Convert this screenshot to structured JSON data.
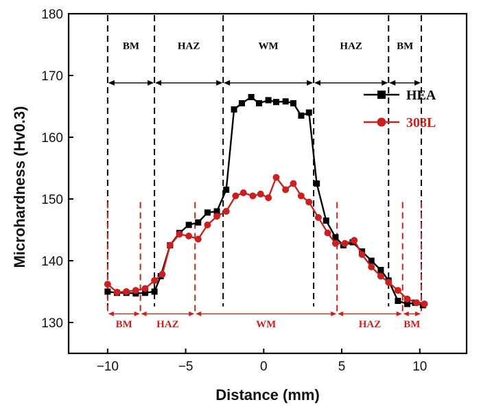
{
  "chart_data": {
    "type": "line",
    "xlabel": "Distance (mm)",
    "ylabel": "Microhardness (Hv0.3)",
    "xlim": [
      -12.5,
      13
    ],
    "ylim": [
      125,
      180
    ],
    "xticks": [
      -10,
      -5,
      0,
      5,
      10
    ],
    "xtick_labels": [
      "−10",
      "−5",
      "0",
      "5",
      "10"
    ],
    "yticks": [
      130,
      140,
      150,
      160,
      170,
      180
    ],
    "ytick_labels": [
      "130",
      "140",
      "150",
      "160",
      "170",
      "180"
    ],
    "colors": {
      "hea": "#000000",
      "l308": "#cc1f1f"
    },
    "series": [
      {
        "name": "HEA",
        "marker": "square",
        "x": [
          -10,
          -9.4,
          -8.8,
          -8.2,
          -7.6,
          -7.0,
          -6.6,
          -6.0,
          -5.4,
          -4.8,
          -4.2,
          -3.6,
          -3.0,
          -2.4,
          -1.9,
          -1.4,
          -0.8,
          -0.3,
          0.3,
          0.8,
          1.4,
          1.9,
          2.4,
          2.9,
          3.4,
          4.0,
          4.6,
          5.1,
          5.7,
          6.3,
          6.9,
          7.5,
          8.0,
          8.6,
          9.2,
          9.7,
          10.2
        ],
        "y": [
          135.0,
          134.8,
          134.8,
          134.7,
          134.8,
          135.0,
          137.5,
          142.5,
          144.5,
          145.8,
          146.2,
          147.8,
          148.0,
          151.5,
          164.5,
          165.5,
          166.5,
          165.5,
          166.0,
          165.7,
          165.8,
          165.5,
          163.5,
          164.0,
          152.5,
          146.5,
          143.8,
          142.5,
          143.0,
          141.5,
          140.0,
          138.5,
          136.8,
          133.5,
          133.0,
          133.2,
          132.8
        ]
      },
      {
        "name": "308L",
        "marker": "circle",
        "x": [
          -10,
          -9.4,
          -8.8,
          -8.2,
          -7.6,
          -7.0,
          -6.5,
          -6.0,
          -5.4,
          -4.8,
          -4.2,
          -3.6,
          -3.0,
          -2.4,
          -1.8,
          -1.3,
          -0.7,
          -0.2,
          0.3,
          0.8,
          1.4,
          1.9,
          2.4,
          2.9,
          3.5,
          4.1,
          4.6,
          5.2,
          5.8,
          6.3,
          6.9,
          7.5,
          8.0,
          8.6,
          9.2,
          9.8,
          10.3
        ],
        "y": [
          136.2,
          134.9,
          135.0,
          135.2,
          135.5,
          136.8,
          137.8,
          142.5,
          144.3,
          144.0,
          143.5,
          145.8,
          147.2,
          148.0,
          150.5,
          151.0,
          150.5,
          150.8,
          150.2,
          153.5,
          151.5,
          152.5,
          150.5,
          149.5,
          147.0,
          144.5,
          142.8,
          142.8,
          143.3,
          141.0,
          139.0,
          137.5,
          136.5,
          135.2,
          133.8,
          133.2,
          133.0
        ]
      }
    ],
    "zones_top": {
      "boundaries": [
        -10,
        -7,
        -2.6,
        3.2,
        8.0,
        10.1
      ],
      "labels": [
        "BM",
        "HAZ",
        "WM",
        "HAZ",
        "BM"
      ]
    },
    "zones_bottom": {
      "boundaries": [
        -10,
        -7.9,
        -4.4,
        4.7,
        8.9,
        10.1
      ],
      "labels": [
        "BM",
        "HAZ",
        "WM",
        "HAZ",
        "BM"
      ]
    },
    "legend": {
      "position": "top-right",
      "entries": [
        "HEA",
        "308L"
      ]
    },
    "grid": false
  }
}
